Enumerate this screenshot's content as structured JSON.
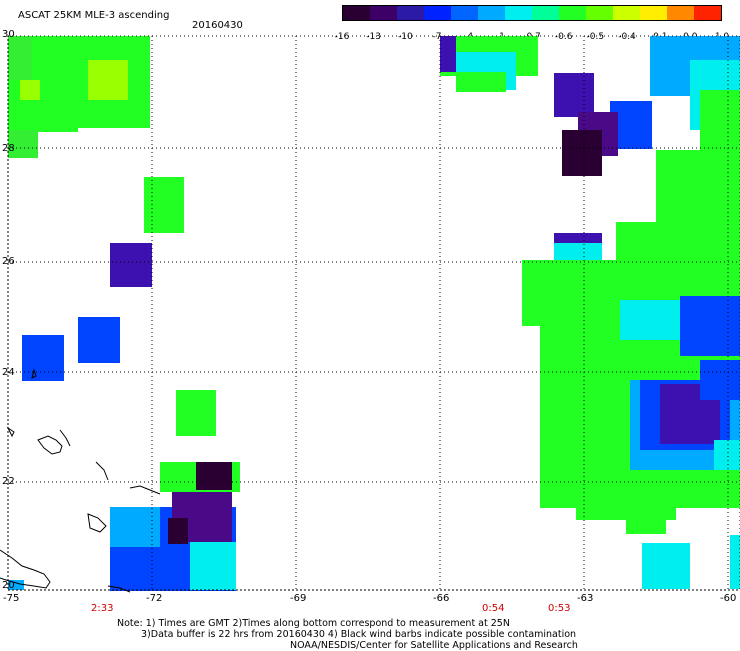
{
  "header": {
    "title": "ASCAT 25KM MLE-3 ascending",
    "date": "20160430"
  },
  "colorbar": {
    "tick_labels": [
      "-16",
      "-13",
      "-10",
      "-7",
      "-4",
      "-1",
      "-0.7",
      "-0.6",
      "-0.5",
      "-0.4",
      "-0.1",
      "0.0",
      "1.0"
    ],
    "colors": [
      "#2a0033",
      "#3d0066",
      "#2a1aa6",
      "#0022ff",
      "#0066ff",
      "#00aaff",
      "#00eeee",
      "#00ff99",
      "#22ff22",
      "#66ff00",
      "#ccff00",
      "#ffee00",
      "#ff8800",
      "#ff2200"
    ]
  },
  "axes": {
    "longitude_labels": [
      "-75",
      "-72",
      "-69",
      "-66",
      "-63",
      "-60"
    ],
    "latitude_labels": [
      "30",
      "28",
      "26",
      "24",
      "22",
      "20"
    ]
  },
  "pass_times": [
    "2:33",
    "0:54",
    "0:53"
  ],
  "notes": {
    "line1": "Note: 1) Times are GMT 2)Times along bottom correspond to measurement at 25N",
    "line2": "3)Data buffer is 22 hrs from 20160430 4) Black wind barbs indicate possible contamination",
    "line3": "NOAA/NESDIS/Center for Satellite Applications and Research"
  }
}
